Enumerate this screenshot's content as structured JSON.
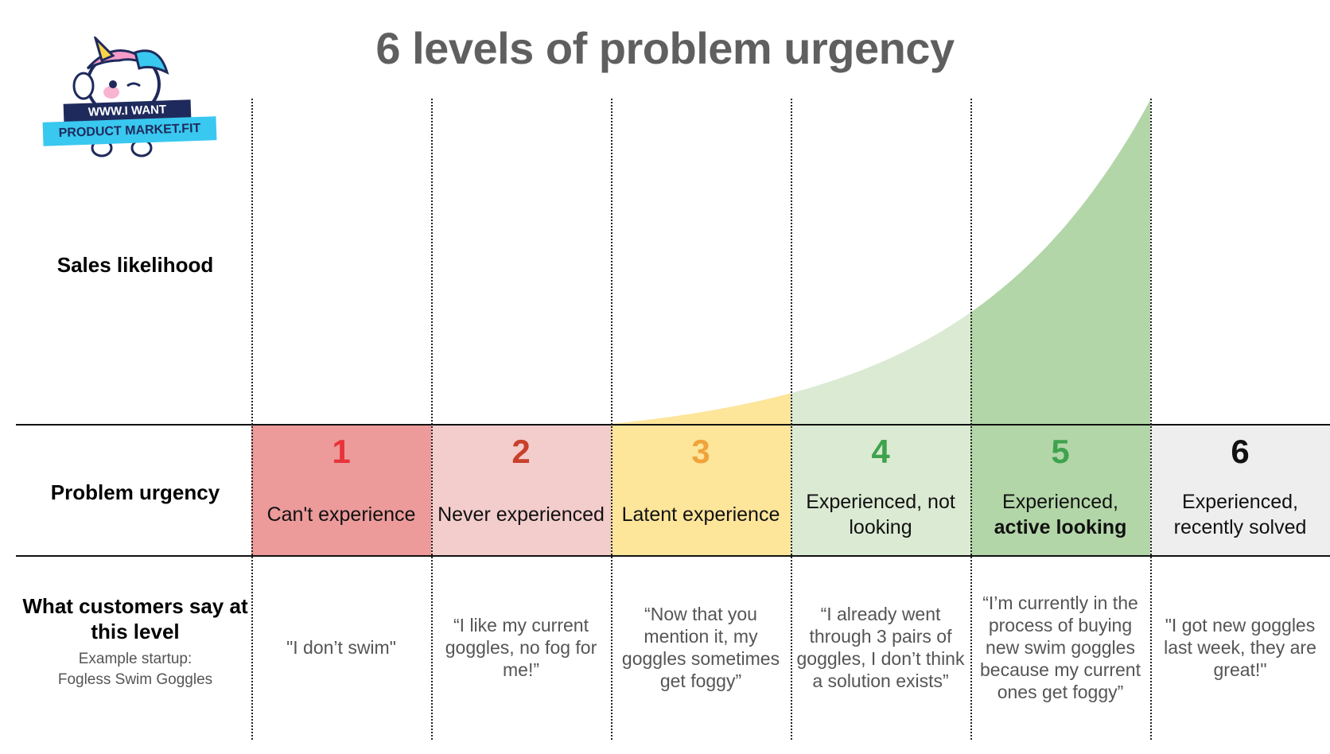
{
  "title": "6 levels of problem urgency",
  "logo": {
    "line1": "WWW.I WANT",
    "line2": "PRODUCT MARKET.FIT"
  },
  "row_labels": {
    "sales": "Sales likelihood",
    "urgency": "Problem urgency",
    "customers_line1": "What customers say at",
    "customers_line2": "this level",
    "example_line1": "Example startup:",
    "example_line2": "Fogless Swim Goggles"
  },
  "levels": [
    {
      "number": "1",
      "label": "Can't experience",
      "label2": "",
      "label2_bold": "",
      "quote": "\"I don’t swim\"",
      "number_color": "#e8333a",
      "bg": "#ec9a9a"
    },
    {
      "number": "2",
      "label": "Never experienced",
      "label2": "",
      "label2_bold": "",
      "quote": "“I like my current goggles, no fog for me!”",
      "number_color": "#c8402a",
      "bg": "#f3cccc"
    },
    {
      "number": "3",
      "label": "Latent experience",
      "label2": "",
      "label2_bold": "",
      "quote": "“Now that you mention it, my goggles sometimes get foggy”",
      "number_color": "#f0a33a",
      "bg": "#fde59a"
    },
    {
      "number": "4",
      "label": "Experienced, not",
      "label2": "looking",
      "label2_bold": "",
      "quote": "“I already went through 3 pairs of goggles, I don’t think a solution exists”",
      "number_color": "#3fa34d",
      "bg": "#dbead3"
    },
    {
      "number": "5",
      "label": "Experienced,",
      "label2": "",
      "label2_bold": "active looking",
      "quote": "“I’m currently in the process of buying new swim goggles because my current ones get foggy”",
      "number_color": "#3fa34d",
      "bg": "#b3d6a8"
    },
    {
      "number": "6",
      "label": "Experienced,",
      "label2": "recently solved",
      "label2_bold": "",
      "quote": "\"I got new goggles last week, they are great!\"",
      "number_color": "#111111",
      "bg": "#eeeeee"
    }
  ],
  "sales_curve": {
    "level_3_to_4_fill": "#fde59a",
    "level_4_fill": "#dbead3",
    "level_5_fill": "#b3d6a8",
    "points": [
      {
        "level_boundary": 3,
        "relative_likelihood": 0.0
      },
      {
        "level_boundary": 4,
        "relative_likelihood": 0.16
      },
      {
        "level_boundary": 5,
        "relative_likelihood": 0.46
      },
      {
        "level_boundary": 6,
        "relative_likelihood": 1.0
      }
    ]
  }
}
